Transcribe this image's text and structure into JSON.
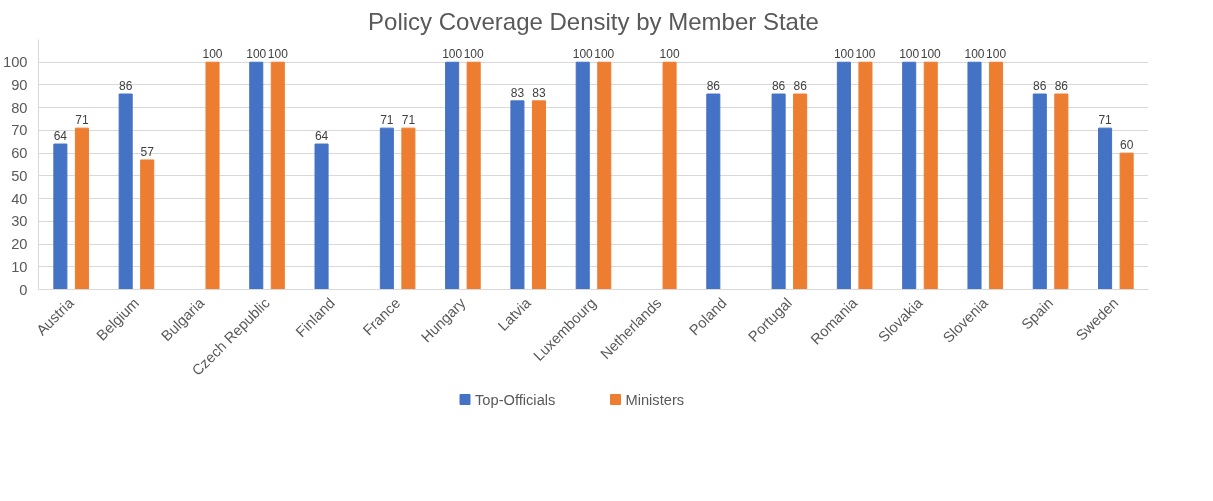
{
  "chart_data": {
    "type": "bar",
    "title": "Policy Coverage Density by Member State",
    "categories": [
      "Austria",
      "Belgium",
      "Bulgaria",
      "Czech Republic",
      "Finland",
      "France",
      "Hungary",
      "Latvia",
      "Luxembourg",
      "Netherlands",
      "Poland",
      "Portugal",
      "Romania",
      "Slovakia",
      "Slovenia",
      "Spain",
      "Sweden"
    ],
    "series": [
      {
        "name": "Top-Officials",
        "color": "#4472c4",
        "values": [
          64,
          86,
          null,
          100,
          64,
          71,
          100,
          83,
          100,
          null,
          86,
          86,
          100,
          100,
          100,
          86,
          71
        ]
      },
      {
        "name": "Ministers",
        "color": "#ed7d31",
        "values": [
          71,
          57,
          100,
          100,
          null,
          71,
          100,
          83,
          100,
          100,
          null,
          86,
          100,
          100,
          100,
          86,
          60
        ]
      }
    ],
    "ylim": [
      0,
      110
    ],
    "yticks": [
      0,
      10,
      20,
      30,
      40,
      50,
      60,
      70,
      80,
      90,
      100
    ],
    "grid": "y",
    "legend": "bottom",
    "data_labels": true
  }
}
